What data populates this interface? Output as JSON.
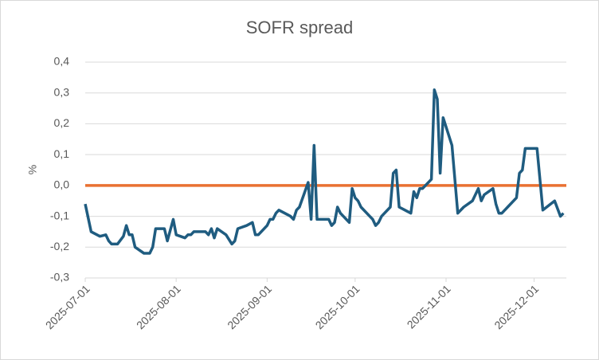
{
  "chart_data": {
    "type": "line",
    "title": "SOFR spread",
    "y_label": "%",
    "x": [
      "2025-07-01",
      "2025-07-03",
      "2025-07-06",
      "2025-07-08",
      "2025-07-09",
      "2025-07-10",
      "2025-07-12",
      "2025-07-14",
      "2025-07-15",
      "2025-07-16",
      "2025-07-17",
      "2025-07-18",
      "2025-07-21",
      "2025-07-23",
      "2025-07-24",
      "2025-07-25",
      "2025-07-28",
      "2025-07-29",
      "2025-07-31",
      "2025-08-01",
      "2025-08-04",
      "2025-08-05",
      "2025-08-06",
      "2025-08-07",
      "2025-08-11",
      "2025-08-12",
      "2025-08-13",
      "2025-08-14",
      "2025-08-15",
      "2025-08-18",
      "2025-08-20",
      "2025-08-21",
      "2025-08-22",
      "2025-08-25",
      "2025-08-27",
      "2025-08-28",
      "2025-08-29",
      "2025-09-01",
      "2025-09-02",
      "2025-09-03",
      "2025-09-04",
      "2025-09-05",
      "2025-09-08",
      "2025-09-09",
      "2025-09-10",
      "2025-09-11",
      "2025-09-12",
      "2025-09-15",
      "2025-09-16",
      "2025-09-17",
      "2025-09-18",
      "2025-09-22",
      "2025-09-23",
      "2025-09-24",
      "2025-09-25",
      "2025-09-26",
      "2025-09-29",
      "2025-09-30",
      "2025-10-01",
      "2025-10-02",
      "2025-10-03",
      "2025-10-06",
      "2025-10-07",
      "2025-10-08",
      "2025-10-09",
      "2025-10-10",
      "2025-10-13",
      "2025-10-14",
      "2025-10-15",
      "2025-10-16",
      "2025-10-20",
      "2025-10-21",
      "2025-10-22",
      "2025-10-23",
      "2025-10-24",
      "2025-10-27",
      "2025-10-28",
      "2025-10-29",
      "2025-10-30",
      "2025-10-31",
      "2025-11-03",
      "2025-11-05",
      "2025-11-07",
      "2025-11-10",
      "2025-11-12",
      "2025-11-13",
      "2025-11-14",
      "2025-11-17",
      "2025-11-18",
      "2025-11-19",
      "2025-11-20",
      "2025-11-25",
      "2025-11-26",
      "2025-11-27",
      "2025-11-28",
      "2025-12-02",
      "2025-12-04",
      "2025-12-08",
      "2025-12-10",
      "2025-12-11"
    ],
    "series": [
      {
        "color": "#1f5c80",
        "values": [
          -0.06,
          -0.15,
          -0.165,
          -0.16,
          -0.18,
          -0.19,
          -0.19,
          -0.165,
          -0.13,
          -0.16,
          -0.16,
          -0.2,
          -0.22,
          -0.22,
          -0.2,
          -0.14,
          -0.14,
          -0.18,
          -0.11,
          -0.16,
          -0.17,
          -0.16,
          -0.16,
          -0.15,
          -0.15,
          -0.16,
          -0.14,
          -0.17,
          -0.14,
          -0.16,
          -0.19,
          -0.18,
          -0.14,
          -0.13,
          -0.12,
          -0.16,
          -0.16,
          -0.13,
          -0.11,
          -0.11,
          -0.09,
          -0.08,
          -0.095,
          -0.1,
          -0.11,
          -0.08,
          -0.07,
          0.01,
          -0.11,
          0.13,
          -0.11,
          -0.11,
          -0.13,
          -0.12,
          -0.07,
          -0.09,
          -0.12,
          -0.01,
          -0.04,
          -0.05,
          -0.07,
          -0.1,
          -0.11,
          -0.13,
          -0.12,
          -0.1,
          -0.07,
          0.04,
          0.05,
          -0.07,
          -0.09,
          -0.02,
          -0.04,
          -0.01,
          -0.01,
          0.02,
          0.31,
          0.28,
          0.04,
          0.22,
          0.13,
          -0.09,
          -0.07,
          -0.05,
          -0.01,
          -0.05,
          -0.03,
          -0.01,
          -0.06,
          -0.09,
          -0.09,
          -0.04,
          0.04,
          0.05,
          0.12,
          0.12,
          -0.08,
          -0.05,
          -0.1,
          -0.09
        ]
      }
    ],
    "reference_line": {
      "value": 0,
      "color": "#e97132"
    },
    "xlim": [
      "2025-07-01",
      "2025-12-12"
    ],
    "xticks": [
      "2025-07-01",
      "2025-08-01",
      "2025-09-01",
      "2025-10-01",
      "2025-11-01",
      "2025-12-01"
    ],
    "ylim": [
      -0.3,
      0.4
    ],
    "yticks": [
      {
        "value": -0.3,
        "label": "-0,3"
      },
      {
        "value": -0.2,
        "label": "-0,2"
      },
      {
        "value": -0.1,
        "label": "-0,1"
      },
      {
        "value": 0,
        "label": "0,0"
      },
      {
        "value": 0.1,
        "label": "0,1"
      },
      {
        "value": 0.2,
        "label": "0,2"
      },
      {
        "value": 0.3,
        "label": "0,3"
      },
      {
        "value": 0.4,
        "label": "0,4"
      }
    ],
    "grid": true
  }
}
